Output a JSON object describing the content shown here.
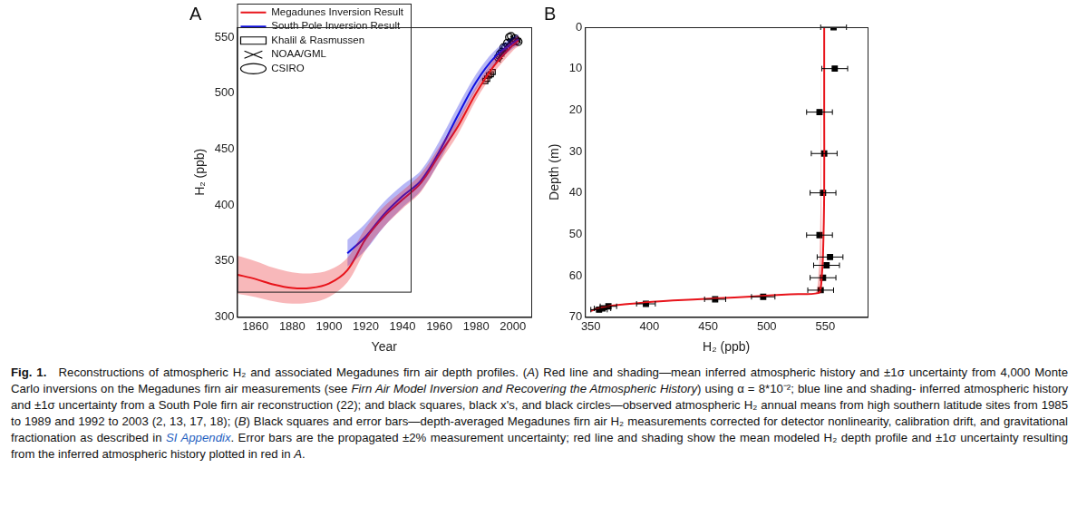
{
  "chart_data": [
    {
      "type": "line",
      "title": "A",
      "x_label": "Year",
      "y_label": "H₂ (ppb)",
      "xlim": [
        1850,
        2010
      ],
      "xticks": [
        1860,
        1880,
        1900,
        1920,
        1940,
        1960,
        1980,
        2000
      ],
      "ylim": [
        300,
        559
      ],
      "yticks": [
        300,
        350,
        400,
        450,
        500,
        550
      ],
      "grid": false,
      "legend": "upper left",
      "series": [
        {
          "name": "Megadunes Inversion Result",
          "type": "line",
          "line_style": "solid",
          "color": "#e8141b",
          "x": [
            1850,
            1860,
            1870,
            1880,
            1890,
            1900,
            1910,
            1920,
            1930,
            1940,
            1950,
            1960,
            1970,
            1980,
            1990,
            2000,
            2003
          ],
          "values": [
            338,
            334,
            329,
            326,
            326,
            330,
            342,
            370,
            390,
            405,
            420,
            445,
            470,
            500,
            525,
            543,
            547
          ],
          "sigma": [
            17,
            16,
            15,
            14,
            13,
            12,
            11,
            10,
            9,
            8,
            8,
            7,
            7,
            6,
            6,
            5,
            5
          ]
        },
        {
          "name": "South Pole Inversion Result",
          "type": "line",
          "line_style": "solid",
          "color": "#1010e0",
          "x": [
            1910,
            1920,
            1930,
            1940,
            1950,
            1960,
            1970,
            1980,
            1990,
            2000,
            2003
          ],
          "values": [
            357,
            372,
            392,
            408,
            422,
            448,
            480,
            510,
            532,
            545,
            548
          ],
          "sigma": [
            12,
            12,
            11,
            10,
            9,
            9,
            8,
            7,
            6,
            5,
            5
          ]
        },
        {
          "name": "Khalil & Rasmussen",
          "type": "scatter",
          "marker": "open_square",
          "color": "#000000",
          "x": [
            1985,
            1986,
            1987,
            1988,
            1989
          ],
          "values": [
            511,
            513,
            516,
            517,
            519
          ]
        },
        {
          "name": "NOAA/GML",
          "type": "scatter",
          "marker": "x",
          "color": "#000000",
          "x": [
            1992,
            1993,
            1994,
            1995,
            1996,
            1997,
            1998,
            1999,
            2000,
            2001,
            2002,
            2003
          ],
          "values": [
            530,
            533,
            535,
            538,
            541,
            543,
            546,
            547,
            549,
            545,
            548,
            547
          ]
        },
        {
          "name": "CSIRO",
          "type": "scatter",
          "marker": "open_circle",
          "color": "#000000",
          "x": [
            1992,
            1993,
            1994,
            1995,
            1996,
            1997,
            1998,
            1999,
            2000,
            2001,
            2002,
            2003
          ],
          "values": [
            532,
            535,
            537,
            541,
            541,
            545,
            550,
            551,
            546,
            549,
            547,
            546
          ]
        }
      ]
    },
    {
      "type": "scatter",
      "title": "B",
      "x_label": "H₂ (ppb)",
      "y_label": "Depth (m)",
      "xlim": [
        345,
        586
      ],
      "xticks": [
        350,
        400,
        450,
        500,
        550
      ],
      "ylim": [
        70,
        0
      ],
      "yticks": [
        0,
        10,
        20,
        30,
        40,
        50,
        60,
        70
      ],
      "grid": false,
      "series": [
        {
          "type": "line",
          "line_style": "solid",
          "color": "#e8141b",
          "x": [
            549,
            549,
            549,
            548,
            547,
            546,
            544,
            520,
            490,
            455,
            420,
            395,
            375,
            362,
            355,
            350
          ],
          "y": [
            0,
            20,
            40,
            55,
            60,
            63,
            64.2,
            64.5,
            65,
            65.5,
            66,
            66.5,
            67,
            67.5,
            68,
            68.5
          ],
          "sigma": [
            3,
            3,
            3,
            3,
            3,
            3,
            3,
            4,
            4,
            4,
            4,
            3,
            3,
            3,
            3,
            3
          ]
        },
        {
          "type": "scatter",
          "marker": "square",
          "color": "#000000",
          "x": [
            557,
            558,
            545,
            549,
            548,
            545,
            554,
            551,
            548,
            546,
            497,
            456,
            397,
            365,
            360,
            357
          ],
          "y": [
            0,
            10,
            20.5,
            30.5,
            40,
            50.2,
            55.5,
            57.5,
            60.5,
            63.5,
            65.1,
            65.7,
            66.8,
            67.4,
            67.9,
            68.2
          ],
          "xerr": [
            11,
            11,
            11,
            11,
            11,
            11,
            11,
            11,
            11,
            11,
            10,
            9,
            8,
            7,
            7,
            7
          ]
        }
      ]
    }
  ],
  "caption": [
    {
      "text": "Fig. 1.",
      "style": "bold"
    },
    {
      "text": " Reconstructions of atmospheric H₂ and associated Megadunes firn air depth profiles. (",
      "style": "normal"
    },
    {
      "text": "A",
      "style": "italic"
    },
    {
      "text": ") Red line and shading—mean inferred atmospheric history and ±1σ uncertainty from 4,000 Monte Carlo inversions on the Megadunes firn air measurements (see ",
      "style": "normal"
    },
    {
      "text": "Firn Air Model Inversion and Recovering the Atmospheric History",
      "style": "italic"
    },
    {
      "text": ") using α = 8*10⁻²; blue line and shading- inferred atmospheric history and ±1σ uncertainty from a South Pole firn air reconstruction (22); and black squares, black x's, and black circles—observed atmospheric H₂ annual means from high southern latitude sites from 1985 to 1989 and 1992 to 2003 (2, 13, 17, 18); (",
      "style": "normal"
    },
    {
      "text": "B",
      "style": "italic"
    },
    {
      "text": ") Black squares and error bars—depth-averaged Megadunes firn air H₂ measurements corrected for detector nonlinearity, calibration drift, and gravitational fractionation as described in ",
      "style": "normal"
    },
    {
      "text": "SI Appendix",
      "style": "link"
    },
    {
      "text": ". Error bars are the propagated ±2% measurement uncertainty; red line and shading show the mean modeled H₂ depth profile and ±1σ uncertainty resulting from the inferred atmospheric history plotted in red in ",
      "style": "normal"
    },
    {
      "text": "A",
      "style": "italic"
    },
    {
      "text": ".",
      "style": "normal"
    }
  ]
}
